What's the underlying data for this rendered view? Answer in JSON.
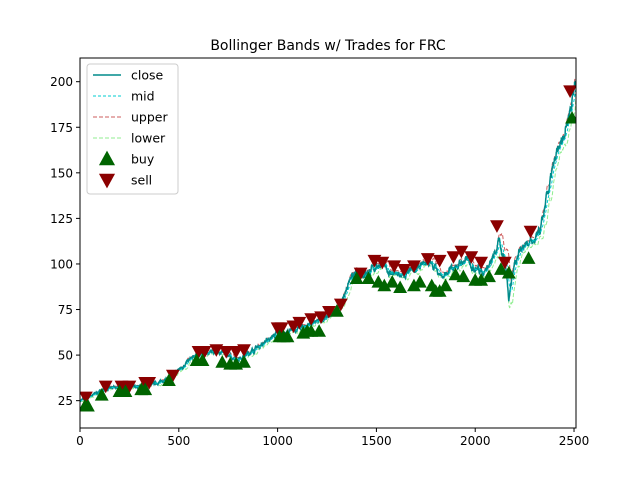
{
  "chart_data": {
    "type": "line",
    "title": "Bollinger Bands w/ Trades for FRC",
    "xlabel": "",
    "ylabel": "",
    "xlim": [
      0,
      2510
    ],
    "ylim": [
      10,
      213
    ],
    "xticks": [
      0,
      500,
      1000,
      1500,
      2000,
      2500
    ],
    "yticks": [
      25,
      50,
      75,
      100,
      125,
      150,
      175,
      200
    ],
    "grid": false,
    "legend_position": "upper-left",
    "colors": {
      "close": "#008b8b",
      "mid": "#00ced1",
      "upper": "#cd5c5c",
      "lower": "#90ee90",
      "buy": "#006400",
      "sell": "#8b0000"
    },
    "legend": [
      {
        "key": "close",
        "label": "close"
      },
      {
        "key": "mid",
        "label": "mid"
      },
      {
        "key": "upper",
        "label": "upper"
      },
      {
        "key": "lower",
        "label": "lower"
      },
      {
        "key": "buy",
        "label": "buy"
      },
      {
        "key": "sell",
        "label": "sell"
      }
    ],
    "close_anchors": [
      [
        0,
        25
      ],
      [
        40,
        27
      ],
      [
        80,
        29
      ],
      [
        120,
        31
      ],
      [
        160,
        32
      ],
      [
        200,
        32
      ],
      [
        240,
        33
      ],
      [
        280,
        32
      ],
      [
        320,
        33
      ],
      [
        360,
        34
      ],
      [
        400,
        35
      ],
      [
        440,
        37
      ],
      [
        480,
        40
      ],
      [
        520,
        44
      ],
      [
        560,
        48
      ],
      [
        600,
        50
      ],
      [
        640,
        51
      ],
      [
        680,
        52
      ],
      [
        720,
        52
      ],
      [
        760,
        49
      ],
      [
        800,
        48
      ],
      [
        840,
        50
      ],
      [
        880,
        53
      ],
      [
        920,
        56
      ],
      [
        960,
        59
      ],
      [
        1000,
        62
      ],
      [
        1040,
        62
      ],
      [
        1080,
        64
      ],
      [
        1120,
        65
      ],
      [
        1160,
        67
      ],
      [
        1200,
        68
      ],
      [
        1240,
        70
      ],
      [
        1280,
        73
      ],
      [
        1320,
        78
      ],
      [
        1360,
        90
      ],
      [
        1400,
        95
      ],
      [
        1440,
        95
      ],
      [
        1480,
        97
      ],
      [
        1520,
        100
      ],
      [
        1560,
        96
      ],
      [
        1600,
        94
      ],
      [
        1640,
        93
      ],
      [
        1680,
        96
      ],
      [
        1720,
        98
      ],
      [
        1760,
        101
      ],
      [
        1800,
        98
      ],
      [
        1840,
        92
      ],
      [
        1880,
        97
      ],
      [
        1920,
        100
      ],
      [
        1960,
        102
      ],
      [
        2000,
        98
      ],
      [
        2040,
        96
      ],
      [
        2080,
        100
      ],
      [
        2120,
        112
      ],
      [
        2150,
        103
      ],
      [
        2170,
        82
      ],
      [
        2200,
        101
      ],
      [
        2240,
        110
      ],
      [
        2280,
        113
      ],
      [
        2300,
        112
      ],
      [
        2330,
        118
      ],
      [
        2360,
        135
      ],
      [
        2400,
        155
      ],
      [
        2440,
        168
      ],
      [
        2480,
        185
      ],
      [
        2510,
        200
      ]
    ],
    "buy": [
      [
        25,
        22
      ],
      [
        40,
        22
      ],
      [
        110,
        28
      ],
      [
        200,
        30
      ],
      [
        230,
        30
      ],
      [
        310,
        31
      ],
      [
        330,
        31
      ],
      [
        450,
        36
      ],
      [
        590,
        47
      ],
      [
        620,
        47
      ],
      [
        720,
        46
      ],
      [
        760,
        45
      ],
      [
        790,
        45
      ],
      [
        830,
        46
      ],
      [
        1010,
        60
      ],
      [
        1030,
        60
      ],
      [
        1050,
        60
      ],
      [
        1130,
        62
      ],
      [
        1150,
        63
      ],
      [
        1170,
        63
      ],
      [
        1210,
        63
      ],
      [
        1300,
        74
      ],
      [
        1400,
        92
      ],
      [
        1460,
        92
      ],
      [
        1510,
        90
      ],
      [
        1540,
        88
      ],
      [
        1580,
        90
      ],
      [
        1620,
        87
      ],
      [
        1690,
        88
      ],
      [
        1720,
        90
      ],
      [
        1780,
        88
      ],
      [
        1800,
        85
      ],
      [
        1820,
        85
      ],
      [
        1850,
        88
      ],
      [
        1900,
        94
      ],
      [
        1940,
        93
      ],
      [
        2000,
        91
      ],
      [
        2030,
        91
      ],
      [
        2070,
        93
      ],
      [
        2130,
        97
      ],
      [
        2170,
        95
      ],
      [
        2270,
        103
      ],
      [
        2490,
        180
      ]
    ],
    "sell": [
      [
        30,
        27
      ],
      [
        130,
        33
      ],
      [
        210,
        33
      ],
      [
        250,
        33
      ],
      [
        330,
        35
      ],
      [
        350,
        35
      ],
      [
        470,
        39
      ],
      [
        600,
        52
      ],
      [
        630,
        52
      ],
      [
        690,
        53
      ],
      [
        740,
        52
      ],
      [
        790,
        52
      ],
      [
        830,
        53
      ],
      [
        1000,
        65
      ],
      [
        1020,
        65
      ],
      [
        1080,
        66
      ],
      [
        1110,
        68
      ],
      [
        1170,
        70
      ],
      [
        1220,
        71
      ],
      [
        1260,
        74
      ],
      [
        1320,
        78
      ],
      [
        1420,
        95
      ],
      [
        1490,
        102
      ],
      [
        1530,
        101
      ],
      [
        1590,
        99
      ],
      [
        1640,
        97
      ],
      [
        1690,
        99
      ],
      [
        1760,
        103
      ],
      [
        1820,
        102
      ],
      [
        1890,
        104
      ],
      [
        1930,
        107
      ],
      [
        1980,
        104
      ],
      [
        2030,
        101
      ],
      [
        2110,
        121
      ],
      [
        2150,
        101
      ],
      [
        2280,
        118
      ],
      [
        2480,
        195
      ]
    ]
  }
}
